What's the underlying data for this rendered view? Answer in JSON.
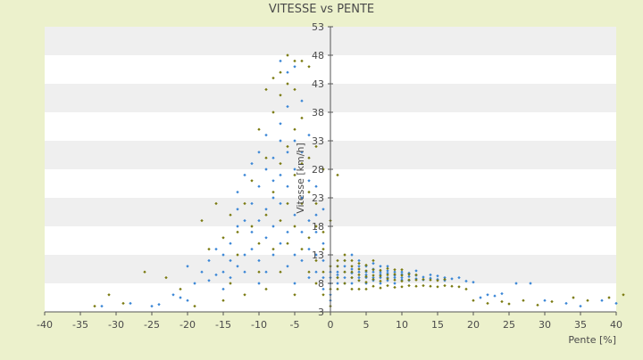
{
  "chart_data": {
    "type": "scatter",
    "title": "VITESSE vs PENTE",
    "xlabel": "Pente [%]",
    "ylabel": "Vitesse [km/h]",
    "xlim": [
      -40,
      40
    ],
    "ylim": [
      3,
      53
    ],
    "x_ticks": [
      "-40",
      "-35",
      "-30",
      "-25",
      "-20",
      "-15",
      "-10",
      "-5",
      "0",
      "5",
      "10",
      "15",
      "20",
      "25",
      "30",
      "35",
      "40"
    ],
    "y_ticks": [
      "3",
      "8",
      "13",
      "18",
      "23",
      "28",
      "33",
      "38",
      "43",
      "48",
      "53"
    ],
    "grid": "horizontal bands",
    "colors": {
      "background": "#ecf1cc",
      "band_light": "#ffffff",
      "band_dark": "#efefef",
      "series_a": "#3a86d6",
      "series_b": "#7a7a10",
      "axis": "#555555"
    },
    "series": [
      {
        "color": "#3a86d6",
        "points": [
          [
            -32,
            4
          ],
          [
            -28,
            4.5
          ],
          [
            -25,
            4
          ],
          [
            -24,
            4.3
          ],
          [
            -22,
            6
          ],
          [
            -21,
            5.5
          ],
          [
            -20,
            11
          ],
          [
            -20,
            5
          ],
          [
            -19,
            8
          ],
          [
            -18,
            10
          ],
          [
            -17,
            8.5
          ],
          [
            -17,
            12
          ],
          [
            -16,
            14
          ],
          [
            -16,
            9.5
          ],
          [
            -15,
            13
          ],
          [
            -15,
            10
          ],
          [
            -15,
            7
          ],
          [
            -14,
            12
          ],
          [
            -14,
            9
          ],
          [
            -14,
            15
          ],
          [
            -13,
            11
          ],
          [
            -13,
            21
          ],
          [
            -13,
            24
          ],
          [
            -13,
            18
          ],
          [
            -12,
            13
          ],
          [
            -12,
            10
          ],
          [
            -12,
            19
          ],
          [
            -12,
            27
          ],
          [
            -11,
            14
          ],
          [
            -11,
            17
          ],
          [
            -11,
            29
          ],
          [
            -11,
            22
          ],
          [
            -10,
            12
          ],
          [
            -10,
            25
          ],
          [
            -10,
            31
          ],
          [
            -10,
            19
          ],
          [
            -10,
            8
          ],
          [
            -9,
            16
          ],
          [
            -9,
            28
          ],
          [
            -9,
            34
          ],
          [
            -9,
            21
          ],
          [
            -9,
            10
          ],
          [
            -8,
            13
          ],
          [
            -8,
            23
          ],
          [
            -8,
            30
          ],
          [
            -8,
            26
          ],
          [
            -8,
            18
          ],
          [
            -7,
            15
          ],
          [
            -7,
            27
          ],
          [
            -7,
            33
          ],
          [
            -7,
            36
          ],
          [
            -7,
            47
          ],
          [
            -7,
            22
          ],
          [
            -6,
            17
          ],
          [
            -6,
            25
          ],
          [
            -6,
            31
          ],
          [
            -6,
            39
          ],
          [
            -6,
            45
          ],
          [
            -6,
            11
          ],
          [
            -5,
            13
          ],
          [
            -5,
            20
          ],
          [
            -5,
            28
          ],
          [
            -5,
            33
          ],
          [
            -5,
            46
          ],
          [
            -5,
            8
          ],
          [
            -4,
            12
          ],
          [
            -4,
            17
          ],
          [
            -4,
            23
          ],
          [
            -4,
            31
          ],
          [
            -4,
            40
          ],
          [
            -3,
            9
          ],
          [
            -3,
            14
          ],
          [
            -3,
            19
          ],
          [
            -3,
            26
          ],
          [
            -3,
            34
          ],
          [
            -2,
            10
          ],
          [
            -2,
            13
          ],
          [
            -2,
            17
          ],
          [
            -2,
            20
          ],
          [
            -2,
            25
          ],
          [
            -1,
            7
          ],
          [
            -1,
            9
          ],
          [
            -1,
            12
          ],
          [
            -1,
            15
          ],
          [
            -1,
            21
          ],
          [
            0,
            6
          ],
          [
            0,
            8
          ],
          [
            0,
            10
          ],
          [
            0,
            5
          ],
          [
            0,
            9
          ],
          [
            1,
            8
          ],
          [
            1,
            9
          ],
          [
            1,
            10
          ],
          [
            1,
            11
          ],
          [
            1,
            9.5
          ],
          [
            2,
            8
          ],
          [
            2,
            9
          ],
          [
            2,
            10
          ],
          [
            2,
            11
          ],
          [
            2,
            12
          ],
          [
            3,
            8
          ],
          [
            3,
            9
          ],
          [
            3,
            9.8
          ],
          [
            3,
            10.5
          ],
          [
            3,
            13
          ],
          [
            4,
            8.5
          ],
          [
            4,
            9
          ],
          [
            4,
            10
          ],
          [
            4,
            11
          ],
          [
            4,
            12
          ],
          [
            5,
            8
          ],
          [
            5,
            9
          ],
          [
            5,
            10
          ],
          [
            5,
            11
          ],
          [
            5,
            9.5
          ],
          [
            6,
            8.5
          ],
          [
            6,
            9
          ],
          [
            6,
            10
          ],
          [
            6,
            10.5
          ],
          [
            6,
            11.5
          ],
          [
            7,
            8
          ],
          [
            7,
            9
          ],
          [
            7,
            9.6
          ],
          [
            7,
            10
          ],
          [
            7,
            11
          ],
          [
            8,
            8.5
          ],
          [
            8,
            9
          ],
          [
            8,
            9.8
          ],
          [
            8,
            10.2
          ],
          [
            8,
            11
          ],
          [
            9,
            8
          ],
          [
            9,
            9
          ],
          [
            9,
            9.4
          ],
          [
            9,
            10
          ],
          [
            10,
            8.6
          ],
          [
            10,
            9
          ],
          [
            10,
            9.6
          ],
          [
            10,
            10
          ],
          [
            11,
            8.5
          ],
          [
            11,
            9.2
          ],
          [
            11,
            9.8
          ],
          [
            12,
            8.8
          ],
          [
            12,
            9.4
          ],
          [
            12,
            10.2
          ],
          [
            13,
            8.6
          ],
          [
            13,
            9.1
          ],
          [
            14,
            8.9
          ],
          [
            14,
            9.5
          ],
          [
            15,
            8.7
          ],
          [
            15,
            9.3
          ],
          [
            16,
            8.5
          ],
          [
            16,
            9
          ],
          [
            17,
            8.8
          ],
          [
            18,
            9
          ],
          [
            19,
            8.4
          ],
          [
            20,
            8.2
          ],
          [
            21,
            5.5
          ],
          [
            22,
            6
          ],
          [
            23,
            5.8
          ],
          [
            24,
            6.2
          ],
          [
            26,
            8
          ],
          [
            28,
            8
          ],
          [
            30,
            5
          ],
          [
            33,
            4.5
          ],
          [
            35,
            4
          ],
          [
            38,
            5
          ],
          [
            40,
            4.5
          ]
        ]
      },
      {
        "color": "#7a7a10",
        "points": [
          [
            -33,
            4
          ],
          [
            -31,
            6
          ],
          [
            -29,
            4.5
          ],
          [
            -26,
            10
          ],
          [
            -23,
            9
          ],
          [
            -21,
            7
          ],
          [
            -19,
            4
          ],
          [
            -18,
            19
          ],
          [
            -17,
            14
          ],
          [
            -16,
            22
          ],
          [
            -15,
            16
          ],
          [
            -15,
            5
          ],
          [
            -14,
            20
          ],
          [
            -14,
            8
          ],
          [
            -13,
            17
          ],
          [
            -13,
            13
          ],
          [
            -12,
            22
          ],
          [
            -12,
            6
          ],
          [
            -11,
            18
          ],
          [
            -11,
            26
          ],
          [
            -10,
            15
          ],
          [
            -10,
            35
          ],
          [
            -10,
            10
          ],
          [
            -9,
            20
          ],
          [
            -9,
            30
          ],
          [
            -9,
            42
          ],
          [
            -9,
            7
          ],
          [
            -8,
            24
          ],
          [
            -8,
            38
          ],
          [
            -8,
            44
          ],
          [
            -8,
            14
          ],
          [
            -7,
            19
          ],
          [
            -7,
            29
          ],
          [
            -7,
            41
          ],
          [
            -7,
            45
          ],
          [
            -7,
            10
          ],
          [
            -6,
            22
          ],
          [
            -6,
            32
          ],
          [
            -6,
            43
          ],
          [
            -6,
            48
          ],
          [
            -6,
            15
          ],
          [
            -5,
            18
          ],
          [
            -5,
            27
          ],
          [
            -5,
            35
          ],
          [
            -5,
            42
          ],
          [
            -5,
            47
          ],
          [
            -5,
            6
          ],
          [
            -4,
            14
          ],
          [
            -4,
            22
          ],
          [
            -4,
            29
          ],
          [
            -4,
            37
          ],
          [
            -4,
            47
          ],
          [
            -3,
            10
          ],
          [
            -3,
            16
          ],
          [
            -3,
            24
          ],
          [
            -3,
            30
          ],
          [
            -3,
            46
          ],
          [
            -2,
            8
          ],
          [
            -2,
            12
          ],
          [
            -2,
            18
          ],
          [
            -2,
            22
          ],
          [
            -2,
            32
          ],
          [
            -1,
            6
          ],
          [
            -1,
            10
          ],
          [
            -1,
            14
          ],
          [
            -1,
            17
          ],
          [
            -1,
            28
          ],
          [
            0,
            4
          ],
          [
            0,
            7
          ],
          [
            0,
            11
          ],
          [
            0,
            19
          ],
          [
            1,
            7
          ],
          [
            1,
            9
          ],
          [
            1,
            11
          ],
          [
            1,
            12
          ],
          [
            1,
            27
          ],
          [
            2,
            8
          ],
          [
            2,
            10
          ],
          [
            2,
            12
          ],
          [
            2,
            13
          ],
          [
            3,
            7
          ],
          [
            3,
            9
          ],
          [
            3,
            10
          ],
          [
            3,
            11
          ],
          [
            3,
            12
          ],
          [
            4,
            7
          ],
          [
            4,
            8.5
          ],
          [
            4,
            9.5
          ],
          [
            4,
            10.5
          ],
          [
            4,
            11.5
          ],
          [
            5,
            7
          ],
          [
            5,
            8.2
          ],
          [
            5,
            9.2
          ],
          [
            5,
            10.2
          ],
          [
            5,
            11.2
          ],
          [
            6,
            7.5
          ],
          [
            6,
            8.7
          ],
          [
            6,
            9.4
          ],
          [
            6,
            10.4
          ],
          [
            6,
            12
          ],
          [
            7,
            7.2
          ],
          [
            7,
            8.4
          ],
          [
            7,
            9.3
          ],
          [
            7,
            10.3
          ],
          [
            8,
            7.6
          ],
          [
            8,
            8.8
          ],
          [
            8,
            9.5
          ],
          [
            8,
            10.6
          ],
          [
            9,
            7.3
          ],
          [
            9,
            8.6
          ],
          [
            9,
            9.6
          ],
          [
            9,
            10.4
          ],
          [
            10,
            7.4
          ],
          [
            10,
            8.4
          ],
          [
            10,
            9.4
          ],
          [
            10,
            10.4
          ],
          [
            11,
            7.6
          ],
          [
            11,
            8.6
          ],
          [
            11,
            9.6
          ],
          [
            12,
            7.5
          ],
          [
            12,
            8.6
          ],
          [
            12,
            9.5
          ],
          [
            13,
            7.6
          ],
          [
            13,
            8.7
          ],
          [
            14,
            7.5
          ],
          [
            14,
            8.6
          ],
          [
            15,
            7.4
          ],
          [
            15,
            8.5
          ],
          [
            16,
            7.6
          ],
          [
            16,
            8.7
          ],
          [
            17,
            7.5
          ],
          [
            18,
            7.4
          ],
          [
            19,
            7
          ],
          [
            20,
            5
          ],
          [
            22,
            4.5
          ],
          [
            24,
            4.8
          ],
          [
            25,
            4.4
          ],
          [
            27,
            5
          ],
          [
            29,
            4.2
          ],
          [
            31,
            4.8
          ],
          [
            34,
            5.5
          ],
          [
            36,
            5
          ],
          [
            39,
            5.5
          ],
          [
            41,
            6
          ]
        ]
      }
    ]
  }
}
